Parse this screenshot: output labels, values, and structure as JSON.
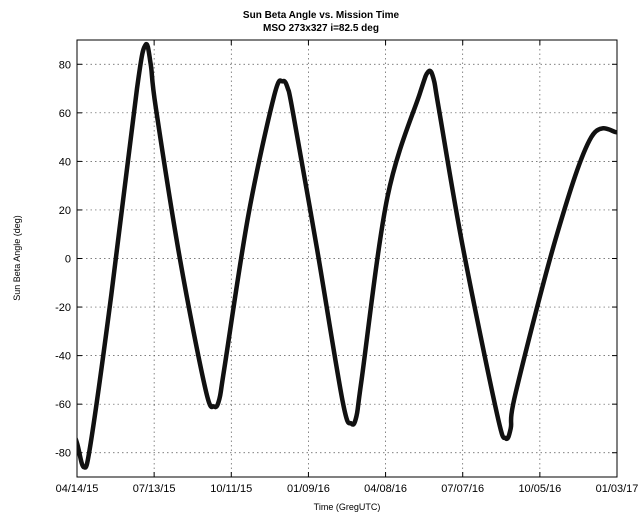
{
  "chart_data": {
    "type": "line",
    "title": "Sun Beta Angle vs. Mission Time",
    "subtitle": "MSO 273x327 i=82.5 deg",
    "xlabel": "Time (GregUTC)",
    "ylabel": "Sun Beta Angle (deg)",
    "x_tick_labels": [
      "04/14/15",
      "07/13/15",
      "10/11/15",
      "01/09/16",
      "04/08/16",
      "07/07/16",
      "10/05/16",
      "01/03/17"
    ],
    "x_tick_values": [
      0,
      90,
      180,
      270,
      360,
      450,
      540,
      630
    ],
    "x_units": "days from 04/14/15 (tick labels are dates)",
    "y_tick_labels": [
      "-80",
      "-60",
      "-40",
      "-20",
      "0",
      "20",
      "40",
      "60",
      "80"
    ],
    "ylim": [
      -90,
      90
    ],
    "xlim": [
      0,
      630
    ],
    "grid": true,
    "series": [
      {
        "name": "",
        "x": [
          -8,
          0,
          8,
          16,
          40,
          70,
          80,
          86,
          92,
          120,
          150,
          160,
          166,
          172,
          200,
          230,
          240,
          246,
          252,
          280,
          310,
          320,
          326,
          332,
          362,
          400,
          410,
          416,
          422,
          450,
          490,
          500,
          506,
          512,
          560,
          600,
          630
        ],
        "y": [
          -68,
          -76,
          -86,
          -76,
          -15,
          70,
          88,
          80,
          62,
          0,
          -54,
          -61,
          -58,
          -45,
          18,
          67,
          73,
          70,
          60,
          4,
          -59,
          -68,
          -65,
          -50,
          25,
          68,
          77,
          74,
          62,
          5,
          -64,
          -74,
          -70,
          -55,
          10,
          50,
          52
        ]
      }
    ]
  }
}
